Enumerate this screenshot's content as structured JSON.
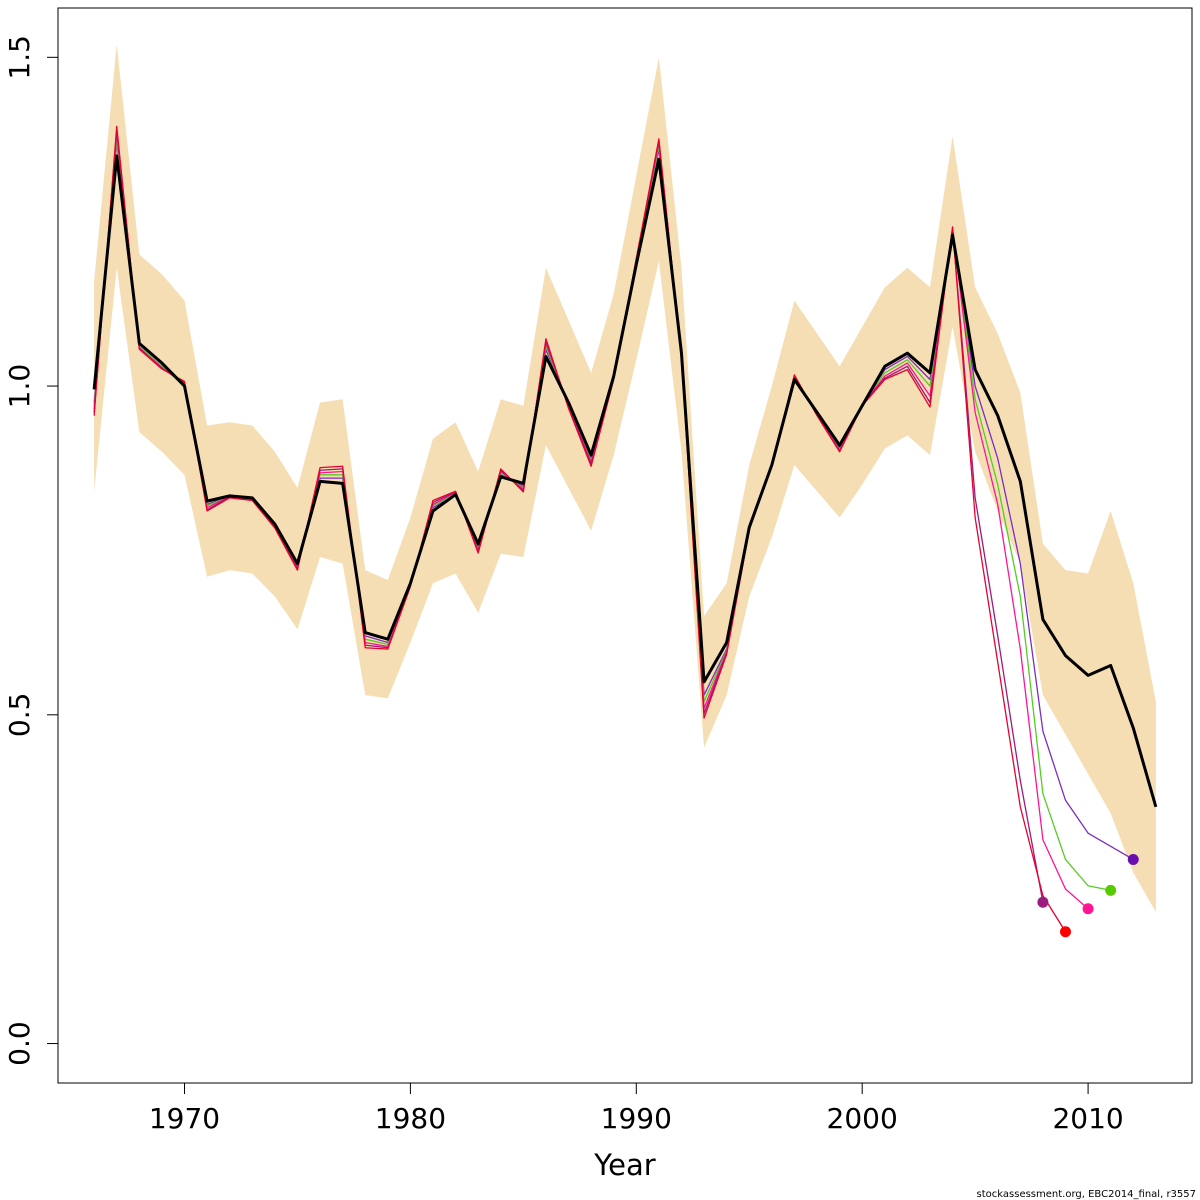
{
  "chart_data": {
    "type": "line",
    "title": "",
    "xlabel": "Year",
    "ylabel": "",
    "xlim": [
      1964.4,
      2014.6
    ],
    "ylim": [
      -0.06,
      1.575
    ],
    "x_ticks": [
      1970,
      1980,
      1990,
      2000,
      2010
    ],
    "x_tick_labels": [
      "1970",
      "1980",
      "1990",
      "2000",
      "2010"
    ],
    "y_ticks": [
      0.0,
      0.5,
      1.0,
      1.5
    ],
    "y_tick_labels": [
      "0.0",
      "0.5",
      "1.0",
      "1.5"
    ],
    "grid": false,
    "legend": "none",
    "footer_text": "stockassessment.org, EBC2014_final, r3557",
    "band": {
      "color": "#F5DEB3",
      "x": [
        1966,
        1967,
        1968,
        1969,
        1970,
        1971,
        1972,
        1973,
        1974,
        1975,
        1976,
        1977,
        1978,
        1979,
        1980,
        1981,
        1982,
        1983,
        1984,
        1985,
        1986,
        1987,
        1988,
        1989,
        1990,
        1991,
        1992,
        1993,
        1994,
        1995,
        1996,
        1997,
        1998,
        1999,
        2000,
        2001,
        2002,
        2003,
        2004,
        2005,
        2006,
        2007,
        2008,
        2009,
        2010,
        2011,
        2012,
        2013
      ],
      "upper": [
        1.16,
        1.52,
        1.2,
        1.17,
        1.13,
        0.94,
        0.945,
        0.94,
        0.9,
        0.845,
        0.975,
        0.98,
        0.72,
        0.705,
        0.8,
        0.92,
        0.945,
        0.87,
        0.98,
        0.97,
        1.18,
        1.1,
        1.02,
        1.14,
        1.32,
        1.5,
        1.18,
        0.65,
        0.7,
        0.88,
        1.0,
        1.13,
        1.08,
        1.03,
        1.09,
        1.15,
        1.18,
        1.15,
        1.38,
        1.15,
        1.08,
        0.99,
        0.76,
        0.72,
        0.715,
        0.81,
        0.7,
        0.52
      ],
      "lower": [
        0.84,
        1.18,
        0.93,
        0.9,
        0.865,
        0.71,
        0.72,
        0.715,
        0.68,
        0.63,
        0.74,
        0.73,
        0.53,
        0.525,
        0.61,
        0.7,
        0.715,
        0.655,
        0.745,
        0.74,
        0.91,
        0.845,
        0.78,
        0.895,
        1.04,
        1.19,
        0.9,
        0.45,
        0.53,
        0.68,
        0.77,
        0.88,
        0.84,
        0.8,
        0.85,
        0.905,
        0.925,
        0.895,
        1.09,
        0.9,
        0.81,
        0.73,
        0.53,
        0.47,
        0.41,
        0.35,
        0.26,
        0.2
      ]
    },
    "series": [
      {
        "color": "#000000",
        "width": 3,
        "x": [
          1966,
          1967,
          1968,
          1969,
          1970,
          1971,
          1972,
          1973,
          1974,
          1975,
          1976,
          1977,
          1978,
          1979,
          1980,
          1981,
          1982,
          1983,
          1984,
          1985,
          1986,
          1987,
          1988,
          1989,
          1990,
          1991,
          1992,
          1993,
          1994,
          1995,
          1996,
          1997,
          1998,
          1999,
          2000,
          2001,
          2002,
          2003,
          2004,
          2005,
          2006,
          2007,
          2008,
          2009,
          2010,
          2011,
          2012,
          2013
        ],
        "y": [
          0.995,
          1.35,
          1.065,
          1.035,
          1.0,
          0.825,
          0.833,
          0.83,
          0.79,
          0.73,
          0.855,
          0.852,
          0.625,
          0.615,
          0.7,
          0.81,
          0.835,
          0.76,
          0.862,
          0.852,
          1.045,
          0.975,
          0.895,
          1.015,
          1.185,
          1.345,
          1.05,
          0.55,
          0.61,
          0.785,
          0.88,
          1.01,
          0.96,
          0.91,
          0.97,
          1.03,
          1.05,
          1.02,
          1.23,
          1.025,
          0.955,
          0.855,
          0.645,
          0.59,
          0.56,
          0.575,
          0.48,
          0.36
        ]
      },
      {
        "color": "#7B2FBE",
        "width": 1.3,
        "x": [
          1966,
          1967,
          1968,
          1969,
          1970,
          1971,
          1972,
          1973,
          1974,
          1975,
          1976,
          1977,
          1978,
          1979,
          1980,
          1981,
          1982,
          1983,
          1984,
          1985,
          1986,
          1987,
          1988,
          1989,
          1990,
          1991,
          1992,
          1993,
          1994,
          1995,
          1996,
          1997,
          1998,
          1999,
          2000,
          2001,
          2002,
          2003,
          2004,
          2005,
          2006,
          2007,
          2008,
          2009,
          2010,
          2011,
          2012
        ],
        "y": [
          0.975,
          1.37,
          1.06,
          1.03,
          1.0,
          0.82,
          0.833,
          0.83,
          0.788,
          0.728,
          0.86,
          0.86,
          0.62,
          0.61,
          0.7,
          0.815,
          0.835,
          0.755,
          0.865,
          0.848,
          1.055,
          0.975,
          0.89,
          1.015,
          1.19,
          1.36,
          1.05,
          0.53,
          0.6,
          0.785,
          0.882,
          1.012,
          0.96,
          0.905,
          0.972,
          1.025,
          1.045,
          1.01,
          1.235,
          1.0,
          0.89,
          0.73,
          0.475,
          0.37,
          0.32,
          0.3,
          0.28
        ]
      },
      {
        "color": "#55CC22",
        "width": 1.3,
        "x": [
          1966,
          1967,
          1968,
          1969,
          1970,
          1971,
          1972,
          1973,
          1974,
          1975,
          1976,
          1977,
          1978,
          1979,
          1980,
          1981,
          1982,
          1983,
          1984,
          1985,
          1986,
          1987,
          1988,
          1989,
          1990,
          1991,
          1992,
          1993,
          1994,
          1995,
          1996,
          1997,
          1998,
          1999,
          2000,
          2001,
          2002,
          2003,
          2004,
          2005,
          2006,
          2007,
          2008,
          2009,
          2010,
          2011
        ],
        "y": [
          0.97,
          1.375,
          1.06,
          1.03,
          1.0,
          0.818,
          0.832,
          0.829,
          0.787,
          0.726,
          0.865,
          0.865,
          0.615,
          0.607,
          0.698,
          0.818,
          0.836,
          0.752,
          0.868,
          0.845,
          1.06,
          0.972,
          0.887,
          1.013,
          1.19,
          1.365,
          1.048,
          0.52,
          0.598,
          0.784,
          0.882,
          1.014,
          0.958,
          0.903,
          0.973,
          1.02,
          1.04,
          1.0,
          1.24,
          0.98,
          0.85,
          0.68,
          0.38,
          0.28,
          0.24,
          0.233
        ]
      },
      {
        "color": "#FF1493",
        "width": 1.3,
        "x": [
          1966,
          1967,
          1968,
          1969,
          1970,
          1971,
          1972,
          1973,
          1974,
          1975,
          1976,
          1977,
          1978,
          1979,
          1980,
          1981,
          1982,
          1983,
          1984,
          1985,
          1986,
          1987,
          1988,
          1989,
          1990,
          1991,
          1992,
          1993,
          1994,
          1995,
          1996,
          1997,
          1998,
          1999,
          2000,
          2001,
          2002,
          2003,
          2004,
          2005,
          2006,
          2007,
          2008,
          2009,
          2010
        ],
        "y": [
          0.965,
          1.385,
          1.058,
          1.028,
          1.003,
          0.815,
          0.832,
          0.828,
          0.786,
          0.724,
          0.868,
          0.87,
          0.61,
          0.604,
          0.697,
          0.82,
          0.838,
          0.75,
          0.87,
          0.843,
          1.065,
          0.97,
          0.884,
          1.012,
          1.192,
          1.37,
          1.046,
          0.51,
          0.596,
          0.783,
          0.881,
          1.015,
          0.957,
          0.902,
          0.972,
          1.015,
          1.035,
          0.985,
          1.24,
          0.96,
          0.82,
          0.6,
          0.31,
          0.235,
          0.205
        ]
      },
      {
        "color": "#9B1B7E",
        "width": 1.3,
        "x": [
          1966,
          1967,
          1968,
          1969,
          1970,
          1971,
          1972,
          1973,
          1974,
          1975,
          1976,
          1977,
          1978,
          1979,
          1980,
          1981,
          1982,
          1983,
          1984,
          1985,
          1986,
          1987,
          1988,
          1989,
          1990,
          1991,
          1992,
          1993,
          1994,
          1995,
          1996,
          1997,
          1998,
          1999,
          2000,
          2001,
          2002,
          2003,
          2004,
          2005,
          2006,
          2007,
          2008
        ],
        "y": [
          0.96,
          1.39,
          1.057,
          1.027,
          1.005,
          0.812,
          0.831,
          0.827,
          0.785,
          0.722,
          0.872,
          0.874,
          0.606,
          0.602,
          0.696,
          0.823,
          0.839,
          0.748,
          0.872,
          0.841,
          1.068,
          0.968,
          0.881,
          1.011,
          1.193,
          1.373,
          1.045,
          0.502,
          0.594,
          0.782,
          0.88,
          1.016,
          0.956,
          0.901,
          0.971,
          1.012,
          1.03,
          0.975,
          1.24,
          0.83,
          0.62,
          0.4,
          0.215
        ]
      },
      {
        "color": "#E8002E",
        "width": 1.3,
        "x": [
          1966,
          1967,
          1968,
          1969,
          1970,
          1971,
          1972,
          1973,
          1974,
          1975,
          1976,
          1977,
          1978,
          1979,
          1980,
          1981,
          1982,
          1983,
          1984,
          1985,
          1986,
          1987,
          1988,
          1989,
          1990,
          1991,
          1992,
          1993,
          1994,
          1995,
          1996,
          1997,
          1998,
          1999,
          2000,
          2001,
          2002,
          2003,
          2004,
          2005,
          2006,
          2007,
          2008,
          2009
        ],
        "y": [
          0.955,
          1.395,
          1.056,
          1.026,
          1.007,
          0.81,
          0.83,
          0.826,
          0.784,
          0.72,
          0.876,
          0.878,
          0.602,
          0.6,
          0.695,
          0.826,
          0.84,
          0.746,
          0.874,
          0.839,
          1.072,
          0.966,
          0.878,
          1.01,
          1.194,
          1.376,
          1.044,
          0.495,
          0.592,
          0.781,
          0.879,
          1.017,
          0.955,
          0.9,
          0.97,
          1.01,
          1.025,
          0.968,
          1.242,
          0.8,
          0.58,
          0.36,
          0.225,
          0.17
        ]
      }
    ],
    "end_points": [
      {
        "x": 2012,
        "y": 0.28,
        "color": "#6A0DAD"
      },
      {
        "x": 2011,
        "y": 0.233,
        "color": "#55CC00"
      },
      {
        "x": 2010,
        "y": 0.205,
        "color": "#FF1493"
      },
      {
        "x": 2008,
        "y": 0.215,
        "color": "#9B1B7E"
      },
      {
        "x": 2009,
        "y": 0.17,
        "color": "#FF0000"
      }
    ]
  }
}
